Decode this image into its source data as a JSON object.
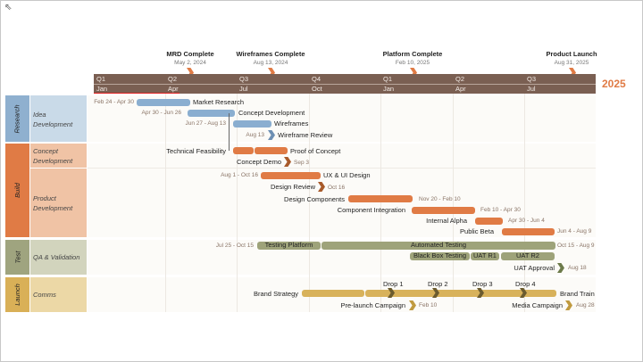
{
  "colors": {
    "research": "#8aaed0",
    "build": "#e07b45",
    "test": "#9ea37a",
    "launch": "#d8b25b",
    "header": "#7a5f52",
    "year": "#e07b45"
  },
  "milestones": [
    {
      "title": "MRD Complete",
      "date": "May 2, 2024"
    },
    {
      "title": "Wireframes Complete",
      "date": "Aug 13, 2024"
    },
    {
      "title": "Platform Complete",
      "date": "Feb 10, 2025"
    },
    {
      "title": "Product Launch",
      "date": "Aug 31, 2025"
    }
  ],
  "quarters": [
    "Q1",
    "Q2",
    "Q3",
    "Q4",
    "Q1",
    "Q2",
    "Q3"
  ],
  "months": [
    "Jan",
    "Apr",
    "Jul",
    "Oct",
    "Jan",
    "Apr",
    "Jul"
  ],
  "year": "2025",
  "groups": {
    "research": "Research",
    "build": "Build",
    "test": "Test",
    "launch": "Launch"
  },
  "subgroups": {
    "idea": "Idea Development",
    "concept": "Concept Development",
    "product": "Product Development",
    "qa": "QA & Validation",
    "comms": "Comms"
  },
  "tasks": {
    "market_research": {
      "label": "Market Research",
      "dates": "Feb 24 - Apr 30"
    },
    "concept_dev": {
      "label": "Concept Development",
      "dates": "Apr 30 - Jun 26"
    },
    "wireframes": {
      "label": "Wireframes",
      "dates": "Jun 27 - Aug 13"
    },
    "wireframe_review": {
      "label": "Wireframe Review",
      "dates": "Aug 13"
    },
    "tech_feas": {
      "label": "Technical Feasibility"
    },
    "poc": {
      "label": "Proof of Concept"
    },
    "concept_demo": {
      "label": "Concept Demo",
      "dates": "Sep 3"
    },
    "ux": {
      "label": "UX & UI Design",
      "dates": "Aug 1 - Oct 16"
    },
    "design_review": {
      "label": "Design Review",
      "dates": "Oct 16"
    },
    "design_comp": {
      "label": "Design Components",
      "dates": "Nov 20 - Feb 10"
    },
    "comp_int": {
      "label": "Component Integration",
      "dates": "Feb 10 - Apr 30"
    },
    "alpha": {
      "label": "Internal Alpha",
      "dates": "Apr 30 - Jun 4"
    },
    "beta": {
      "label": "Public Beta",
      "dates": "Jun 4 - Aug 9"
    },
    "testing_platform": {
      "label": "Testing Platform",
      "dates": "Jul 25 - Oct 15"
    },
    "automated": {
      "label": "Automated Testing",
      "dates": "Oct 15 - Aug 9"
    },
    "blackbox": {
      "label": "Black Box Testing"
    },
    "uat1": {
      "label": "UAT R1"
    },
    "uat2": {
      "label": "UAT R2"
    },
    "uat_approval": {
      "label": "UAT Approval",
      "dates": "Aug 18"
    },
    "brand_strategy": {
      "label": "Brand Strategy"
    },
    "brand_train": {
      "label": "Brand Train"
    },
    "drops": [
      "Drop 1",
      "Drop 2",
      "Drop 3",
      "Drop 4"
    ],
    "prelaunch": {
      "label": "Pre-launch Campaign",
      "dates": "Feb 10"
    },
    "media": {
      "label": "Media Campaign",
      "dates": "Aug 28"
    }
  }
}
